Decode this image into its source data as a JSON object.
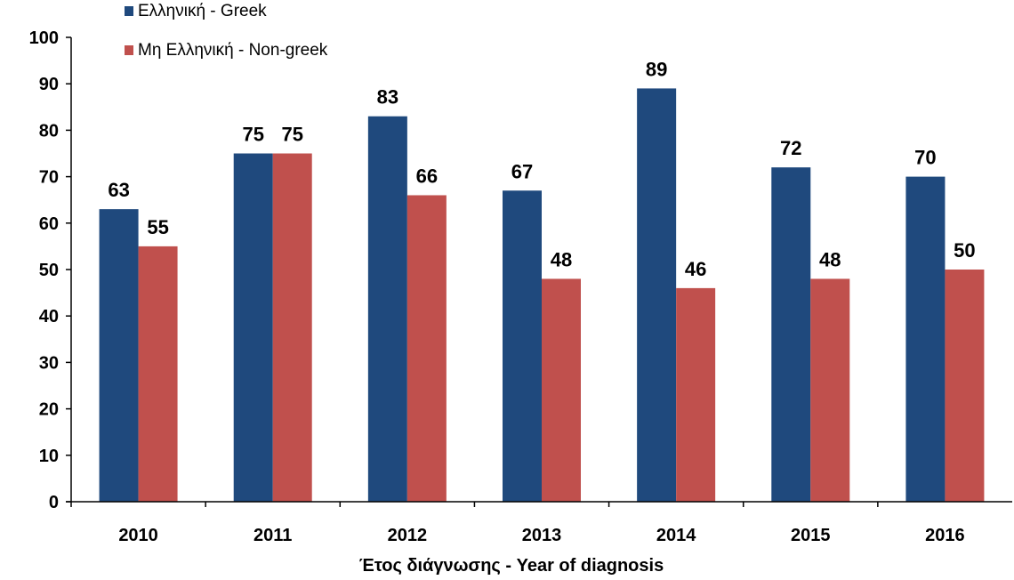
{
  "chart_data": {
    "type": "bar",
    "categories": [
      "2010",
      "2011",
      "2012",
      "2013",
      "2014",
      "2015",
      "2016"
    ],
    "series": [
      {
        "name": "Ελληνική - Greek",
        "color": "#1f497d",
        "values": [
          63,
          75,
          83,
          67,
          89,
          72,
          70
        ]
      },
      {
        "name": "Μη Ελληνική - Non-greek",
        "color": "#c0504d",
        "values": [
          55,
          75,
          66,
          48,
          46,
          48,
          50
        ]
      }
    ],
    "title": "",
    "xlabel": "Έτος διάγνωσης - Year of diagnosis",
    "ylabel": "",
    "ylim": [
      0,
      100
    ],
    "yticks": [
      0,
      10,
      20,
      30,
      40,
      50,
      60,
      70,
      80,
      90,
      100
    ],
    "grid": false,
    "legend_position": "top-left",
    "data_labels": true
  }
}
